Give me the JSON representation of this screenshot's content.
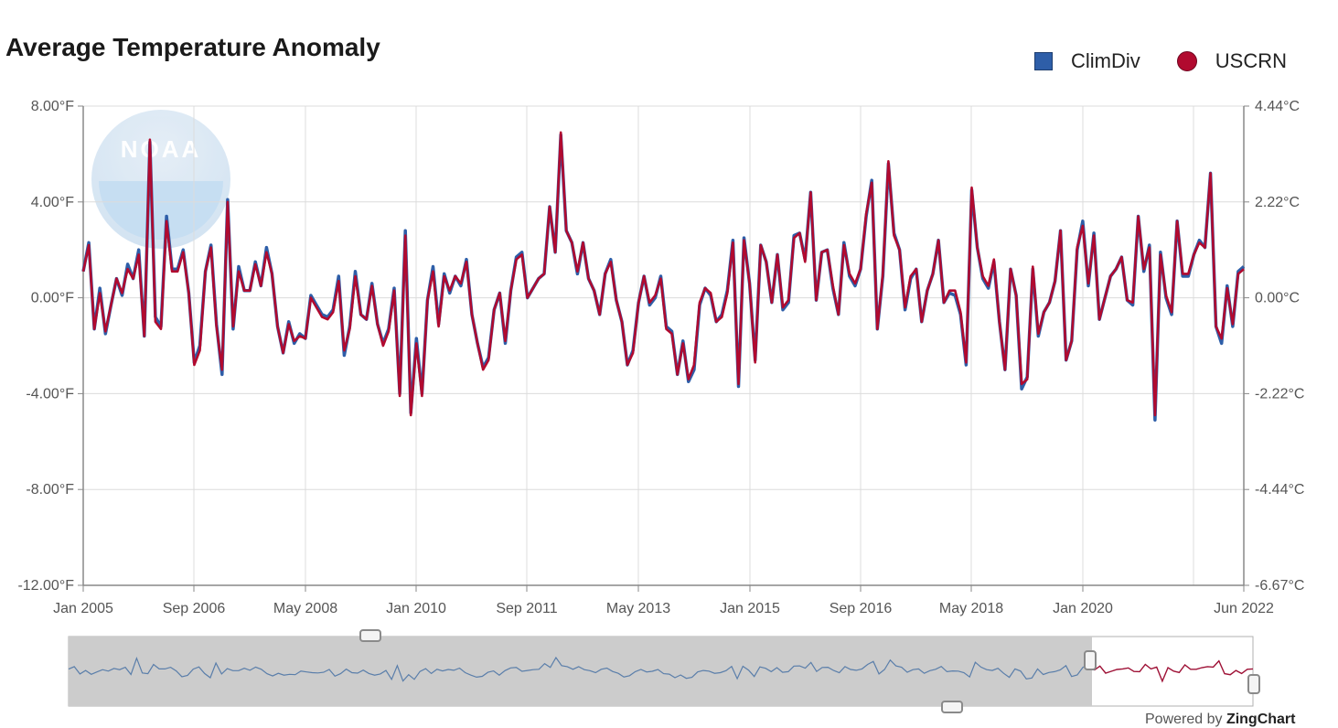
{
  "title": "Average Temperature Anomaly",
  "legend": [
    {
      "name": "ClimDiv",
      "color": "#2e5ea8",
      "shape": "square"
    },
    {
      "name": "USCRN",
      "color": "#b10a2f",
      "shape": "circle"
    }
  ],
  "watermark": "NOAA",
  "powered_by": {
    "prefix": "Powered by ",
    "brand": "ZingChart"
  },
  "chart_data": {
    "type": "line",
    "title": "Average Temperature Anomaly",
    "x_start": "Jan 2005",
    "x_end": "Jun 2022",
    "x_tick_labels": [
      "Jan 2005",
      "Sep 2006",
      "May 2008",
      "Jan 2010",
      "Sep 2011",
      "May 2013",
      "Jan 2015",
      "Sep 2016",
      "May 2018",
      "Jan 2020",
      "Jun 2022"
    ],
    "y_left_ticks": [
      "8.00°F",
      "4.00°F",
      "0.00°F",
      "-4.00°F",
      "-8.00°F",
      "-12.00°F"
    ],
    "y_right_ticks": [
      "4.44°C",
      "2.22°C",
      "0.00°C",
      "-2.22°C",
      "-4.44°C",
      "-6.67°C"
    ],
    "ylim": [
      -12,
      8
    ],
    "grid": true,
    "legend_position": "top-right",
    "series": [
      {
        "name": "ClimDiv",
        "color": "#2e5ea8",
        "values": [
          1.1,
          2.3,
          -1.3,
          0.4,
          -1.5,
          -0.3,
          0.8,
          0.1,
          1.4,
          0.8,
          2.0,
          -1.6,
          6.5,
          -0.8,
          -1.2,
          3.4,
          1.2,
          1.2,
          2.0,
          0.2,
          -2.7,
          -2.0,
          1.1,
          2.2,
          -1.1,
          -3.2,
          4.1,
          -1.3,
          1.3,
          0.3,
          0.3,
          1.5,
          0.5,
          2.1,
          1.0,
          -1.2,
          -2.3,
          -1.0,
          -1.9,
          -1.5,
          -1.7,
          0.1,
          -0.3,
          -0.7,
          -0.8,
          -0.5,
          0.9,
          -2.4,
          -1.2,
          1.1,
          -0.7,
          -0.9,
          0.6,
          -1.1,
          -1.9,
          -1.3,
          0.4,
          -4.0,
          2.8,
          -4.8,
          -1.7,
          -4.0,
          -0.1,
          1.3,
          -1.1,
          1.0,
          0.2,
          0.9,
          0.5,
          1.6,
          -0.7,
          -1.9,
          -2.9,
          -2.5,
          -0.5,
          0.2,
          -1.9,
          0.3,
          1.7,
          1.9,
          0.0,
          0.4,
          0.8,
          1.0,
          3.8,
          1.9,
          6.8,
          2.8,
          2.3,
          1.0,
          2.3,
          0.8,
          0.3,
          -0.7,
          1.0,
          1.6,
          -0.1,
          -1.0,
          -2.8,
          -2.2,
          -0.2,
          0.9,
          -0.3,
          0.0,
          0.9,
          -1.2,
          -1.4,
          -3.2,
          -1.8,
          -3.5,
          -3.0,
          -0.3,
          0.4,
          0.1,
          -1.0,
          -0.7,
          0.3,
          2.4,
          -3.7,
          2.5,
          0.6,
          -2.6,
          2.2,
          1.5,
          -0.2,
          1.8,
          -0.5,
          -0.2,
          2.6,
          2.7,
          1.6,
          4.4,
          -0.1,
          1.9,
          2.0,
          0.4,
          -0.7,
          2.3,
          0.9,
          0.5,
          1.2,
          3.4,
          4.9,
          -1.3,
          0.9,
          5.6,
          2.7,
          2.0,
          -0.5,
          0.8,
          1.2,
          -1.0,
          0.3,
          1.0,
          2.4,
          -0.2,
          0.2,
          0.1,
          -0.7,
          -2.8,
          4.5,
          2.1,
          0.8,
          0.4,
          1.5,
          -1.0,
          -3.0,
          1.2,
          0.1,
          -3.8,
          -3.3,
          1.2,
          -1.6,
          -0.6,
          -0.2,
          0.7,
          2.8,
          -2.6,
          -1.8,
          2.0,
          3.2,
          0.5,
          2.7,
          -0.9,
          0.0,
          0.9,
          1.2,
          1.7,
          -0.1,
          -0.3,
          3.4,
          1.1,
          2.2,
          -5.1,
          1.9,
          0.0,
          -0.7,
          3.2,
          0.9,
          0.9,
          1.8,
          2.4,
          2.1,
          5.2,
          -1.2,
          -1.9,
          0.5,
          -1.2,
          1.1,
          1.3
        ]
      },
      {
        "name": "USCRN",
        "color": "#b10a2f",
        "values": [
          1.1,
          2.2,
          -1.3,
          0.2,
          -1.4,
          -0.3,
          0.8,
          0.2,
          1.2,
          0.8,
          1.8,
          -1.6,
          6.6,
          -1.0,
          -1.3,
          3.2,
          1.1,
          1.1,
          1.9,
          0.2,
          -2.8,
          -2.2,
          1.1,
          2.1,
          -1.2,
          -3.0,
          4.0,
          -1.2,
          1.1,
          0.3,
          0.3,
          1.4,
          0.5,
          1.9,
          1.0,
          -1.2,
          -2.3,
          -1.1,
          -1.8,
          -1.6,
          -1.7,
          0.0,
          -0.4,
          -0.8,
          -0.9,
          -0.6,
          0.7,
          -2.2,
          -1.3,
          0.9,
          -0.7,
          -0.9,
          0.5,
          -1.1,
          -2.0,
          -1.4,
          0.3,
          -4.1,
          2.6,
          -4.9,
          -1.9,
          -4.1,
          -0.1,
          1.1,
          -1.2,
          0.9,
          0.3,
          0.9,
          0.6,
          1.5,
          -0.7,
          -1.9,
          -3.0,
          -2.6,
          -0.5,
          0.2,
          -1.8,
          0.3,
          1.6,
          1.8,
          0.0,
          0.4,
          0.8,
          1.0,
          3.8,
          1.9,
          6.9,
          2.8,
          2.3,
          1.1,
          2.3,
          0.8,
          0.3,
          -0.7,
          1.0,
          1.5,
          -0.1,
          -1.0,
          -2.8,
          -2.3,
          -0.2,
          0.9,
          -0.2,
          0.1,
          0.8,
          -1.3,
          -1.5,
          -3.2,
          -1.9,
          -3.4,
          -2.8,
          -0.2,
          0.4,
          0.2,
          -1.0,
          -0.8,
          0.2,
          2.3,
          -3.6,
          2.4,
          0.6,
          -2.7,
          2.2,
          1.5,
          -0.2,
          1.8,
          -0.4,
          -0.1,
          2.5,
          2.7,
          1.5,
          4.4,
          -0.1,
          1.9,
          2.0,
          0.5,
          -0.7,
          2.2,
          1.0,
          0.6,
          1.2,
          3.5,
          4.8,
          -1.3,
          1.0,
          5.7,
          2.6,
          2.0,
          -0.4,
          0.9,
          1.2,
          -1.0,
          0.3,
          1.0,
          2.4,
          -0.2,
          0.3,
          0.3,
          -0.6,
          -2.7,
          4.6,
          2.1,
          0.9,
          0.5,
          1.6,
          -1.0,
          -3.0,
          1.2,
          0.1,
          -3.6,
          -3.4,
          1.3,
          -1.5,
          -0.6,
          -0.2,
          0.7,
          2.8,
          -2.6,
          -1.8,
          2.1,
          3.0,
          0.6,
          2.6,
          -0.9,
          0.0,
          0.9,
          1.2,
          1.7,
          -0.1,
          -0.2,
          3.4,
          1.2,
          2.1,
          -4.9,
          1.8,
          0.1,
          -0.6,
          3.2,
          1.0,
          1.0,
          1.8,
          2.3,
          2.1,
          5.2,
          -1.2,
          -1.7,
          0.4,
          -1.1,
          1.0,
          1.2
        ]
      }
    ]
  }
}
